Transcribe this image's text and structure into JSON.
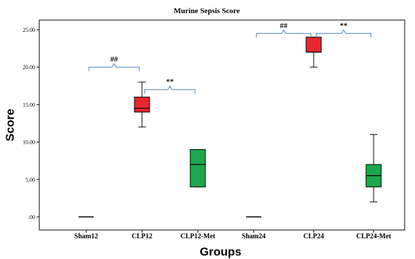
{
  "chart_data": {
    "type": "box",
    "title": "Murine Sepsis Score",
    "xlabel": "Groups",
    "ylabel": "Score",
    "ylim": [
      0,
      25
    ],
    "yticks": [
      0,
      5,
      10,
      15,
      20,
      25
    ],
    "ytick_labels": [
      ".00",
      "5.00",
      "10.00",
      "15.00",
      "20.00",
      "25.00"
    ],
    "grid": false,
    "categories": [
      "Sham12",
      "CLP12",
      "CLP12-Met",
      "Sham24",
      "CLP24",
      "CLP24-Met"
    ],
    "boxes": [
      {
        "category": "Sham12",
        "min": 0,
        "q1": 0,
        "median": 0,
        "q3": 0,
        "max": 0,
        "color": "#000000"
      },
      {
        "category": "CLP12",
        "min": 12,
        "q1": 14,
        "median": 14.5,
        "q3": 16,
        "max": 18,
        "color": "#e8262c"
      },
      {
        "category": "CLP12-Met",
        "min": 4,
        "q1": 4,
        "median": 7,
        "q3": 9,
        "max": 9,
        "color": "#1aa84b"
      },
      {
        "category": "Sham24",
        "min": 0,
        "q1": 0,
        "median": 0,
        "q3": 0,
        "max": 0,
        "color": "#000000"
      },
      {
        "category": "CLP24",
        "min": 20,
        "q1": 22,
        "median": 22,
        "q3": 24,
        "max": 24,
        "color": "#e8262c"
      },
      {
        "category": "CLP24-Met",
        "min": 2,
        "q1": 4,
        "median": 5.5,
        "q3": 7,
        "max": 11,
        "color": "#1aa84b"
      }
    ],
    "annotations": [
      {
        "text": "##",
        "from": "Sham12",
        "to": "CLP12",
        "y": 20
      },
      {
        "text": "**",
        "from": "CLP12",
        "to": "CLP12-Met",
        "y": 17
      },
      {
        "text": "##",
        "from": "Sham24",
        "to": "CLP24",
        "y": 24.5
      },
      {
        "text": "**",
        "from": "CLP24",
        "to": "CLP24-Met",
        "y": 24.5
      }
    ],
    "bracket_color": "#4a7fc1"
  }
}
